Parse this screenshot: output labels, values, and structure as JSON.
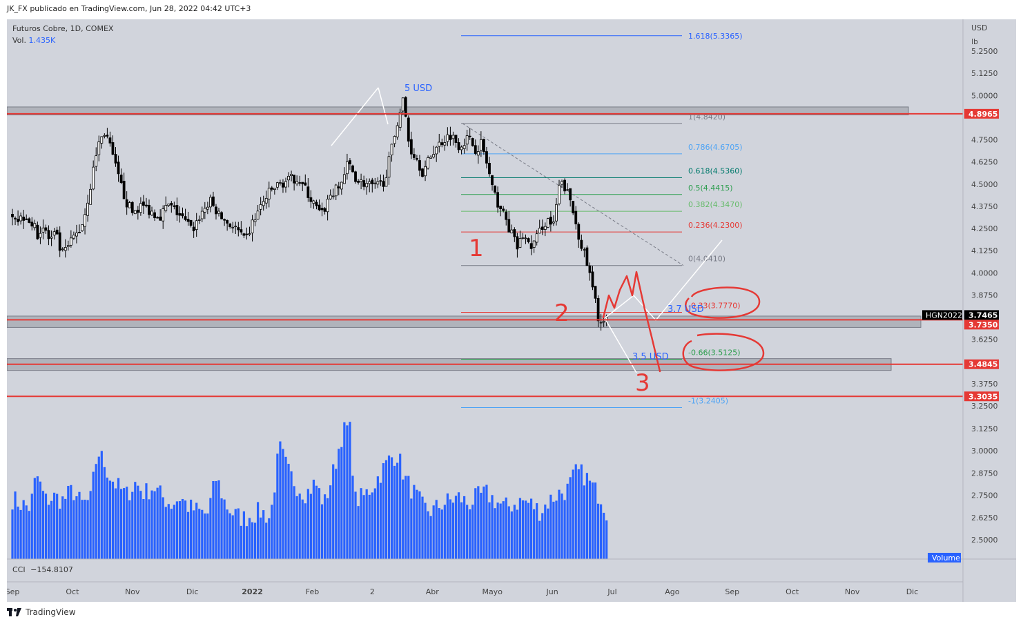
{
  "header": {
    "publisher_line": "JK_FX publicado en TradingView.com, Jun 28, 2022 04:42 UTC+3"
  },
  "legend": {
    "symbol_line": "Futuros Cobre, 1D, COMEX",
    "vol_label": "Vol.",
    "vol_value": "1.435K",
    "cci_label": "CCI",
    "cci_value": "−154.8107"
  },
  "axis": {
    "currency": "USD",
    "unit": "lb",
    "price_ticks": [
      "5.2500",
      "5.1250",
      "5.0000",
      "4.7500",
      "4.6250",
      "4.5000",
      "4.3750",
      "4.2500",
      "4.1250",
      "4.0000",
      "3.8750",
      "3.6250",
      "3.3750",
      "3.2500",
      "3.1250",
      "3.0000",
      "2.8750",
      "2.7500",
      "2.6250",
      "2.5000"
    ],
    "time_ticks": [
      "Sep",
      "Oct",
      "Nov",
      "Dic",
      "2022",
      "Feb",
      "2",
      "Abr",
      "Mayo",
      "Jun",
      "Jul",
      "Ago",
      "Sep",
      "Oct",
      "Nov",
      "Dic"
    ],
    "volume_tag": "Volume"
  },
  "price_tags": [
    {
      "text": "4.8965",
      "price": 4.8965,
      "color": "#e53935"
    },
    {
      "text": "3.7465",
      "price": 3.7465,
      "color": "#000000"
    },
    {
      "text": "3.7350",
      "price": 3.735,
      "color": "#e53935"
    },
    {
      "text": "3.4845",
      "price": 3.4845,
      "color": "#e53935"
    },
    {
      "text": "3.3035",
      "price": 3.3035,
      "color": "#e53935"
    }
  ],
  "symbol_tag": "HGN2022",
  "fib_levels": [
    {
      "label": "1.618(5.3365)",
      "price": 5.3365,
      "color": "#2962ff"
    },
    {
      "label": "1(4.8420)",
      "price": 4.842,
      "color": "#787b86"
    },
    {
      "label": "0.786(4.6705)",
      "price": 4.6705,
      "color": "#4da3f5"
    },
    {
      "label": "0.618(4.5360)",
      "price": 4.536,
      "color": "#00796b"
    },
    {
      "label": "0.5(4.4415)",
      "price": 4.4415,
      "color": "#2e9e4f"
    },
    {
      "label": "0.382(4.3470)",
      "price": 4.347,
      "color": "#66bb6a"
    },
    {
      "label": "0.236(4.2300)",
      "price": 4.23,
      "color": "#e53935"
    },
    {
      "label": "0(4.0410)",
      "price": 4.041,
      "color": "#787b86"
    },
    {
      "label": "-0.33(3.7770)",
      "price": 3.777,
      "color": "#e53935"
    },
    {
      "label": "-0.66(3.5125)",
      "price": 3.5125,
      "color": "#2e9e4f"
    },
    {
      "label": "-1(3.2405)",
      "price": 3.2405,
      "color": "#4da3f5"
    }
  ],
  "annotations": {
    "target_high": "5 USD",
    "target_mid": "3.7 USD",
    "target_low": "3.5 USD",
    "wave_1": "1",
    "wave_2": "2",
    "wave_3": "3"
  },
  "colors": {
    "up_candle": "#ffffff",
    "down_candle": "#000000",
    "volume": "#2962ff",
    "support": "#e53935",
    "drawing": "#ffffff"
  },
  "footer": {
    "brand": "TradingView"
  },
  "chart_data": {
    "type": "candlestick",
    "title": "Futuros Cobre, 1D, COMEX",
    "ylabel": "USD / lb",
    "ylim": [
      3.18,
      5.27
    ],
    "volume_ylim": [
      2.45,
      3.2
    ],
    "x_categories": [
      "Sep",
      "Oct",
      "Nov",
      "Dic",
      "2022",
      "Feb",
      "2",
      "Abr",
      "Mayo",
      "Jun",
      "Jul",
      "Ago",
      "Sep",
      "Oct",
      "Nov",
      "Dic"
    ],
    "x_range": [
      0,
      15.6
    ],
    "close_path": [
      [
        0.0,
        4.34
      ],
      [
        0.1,
        4.3
      ],
      [
        0.22,
        4.33
      ],
      [
        0.32,
        4.28
      ],
      [
        0.42,
        4.22
      ],
      [
        0.52,
        4.26
      ],
      [
        0.62,
        4.18
      ],
      [
        0.72,
        4.22
      ],
      [
        0.82,
        4.1
      ],
      [
        0.92,
        4.14
      ],
      [
        1.02,
        4.2
      ],
      [
        1.12,
        4.24
      ],
      [
        1.2,
        4.32
      ],
      [
        1.32,
        4.52
      ],
      [
        1.42,
        4.72
      ],
      [
        1.55,
        4.8
      ],
      [
        1.65,
        4.68
      ],
      [
        1.78,
        4.52
      ],
      [
        1.9,
        4.4
      ],
      [
        2.0,
        4.34
      ],
      [
        2.15,
        4.38
      ],
      [
        2.3,
        4.35
      ],
      [
        2.45,
        4.32
      ],
      [
        2.6,
        4.38
      ],
      [
        2.75,
        4.34
      ],
      [
        2.9,
        4.28
      ],
      [
        3.0,
        4.24
      ],
      [
        3.15,
        4.34
      ],
      [
        3.3,
        4.4
      ],
      [
        3.45,
        4.32
      ],
      [
        3.6,
        4.28
      ],
      [
        3.75,
        4.24
      ],
      [
        3.88,
        4.17
      ],
      [
        4.0,
        4.28
      ],
      [
        4.15,
        4.38
      ],
      [
        4.3,
        4.46
      ],
      [
        4.45,
        4.5
      ],
      [
        4.6,
        4.52
      ],
      [
        4.75,
        4.54
      ],
      [
        4.9,
        4.46
      ],
      [
        5.0,
        4.4
      ],
      [
        5.15,
        4.32
      ],
      [
        5.3,
        4.44
      ],
      [
        5.45,
        4.48
      ],
      [
        5.6,
        4.62
      ],
      [
        5.75,
        4.52
      ],
      [
        5.9,
        4.5
      ],
      [
        6.05,
        4.48
      ],
      [
        6.2,
        4.52
      ],
      [
        6.3,
        4.66
      ],
      [
        6.42,
        4.86
      ],
      [
        6.52,
        4.98
      ],
      [
        6.62,
        4.7
      ],
      [
        6.72,
        4.66
      ],
      [
        6.85,
        4.56
      ],
      [
        7.0,
        4.68
      ],
      [
        7.15,
        4.74
      ],
      [
        7.3,
        4.78
      ],
      [
        7.45,
        4.72
      ],
      [
        7.6,
        4.76
      ],
      [
        7.72,
        4.7
      ],
      [
        7.82,
        4.73
      ],
      [
        7.92,
        4.6
      ],
      [
        8.02,
        4.44
      ],
      [
        8.12,
        4.38
      ],
      [
        8.22,
        4.3
      ],
      [
        8.32,
        4.22
      ],
      [
        8.42,
        4.14
      ],
      [
        8.52,
        4.22
      ],
      [
        8.62,
        4.14
      ],
      [
        8.72,
        4.18
      ],
      [
        8.82,
        4.26
      ],
      [
        8.92,
        4.3
      ],
      [
        9.02,
        4.26
      ],
      [
        9.12,
        4.5
      ],
      [
        9.22,
        4.48
      ],
      [
        9.32,
        4.38
      ],
      [
        9.42,
        4.24
      ],
      [
        9.52,
        4.12
      ],
      [
        9.6,
        4.02
      ],
      [
        9.68,
        3.9
      ],
      [
        9.76,
        3.76
      ],
      [
        9.84,
        3.7
      ],
      [
        9.92,
        3.7465
      ]
    ],
    "volume_path": [
      [
        0.0,
        2.73
      ],
      [
        0.15,
        2.7
      ],
      [
        0.3,
        2.68
      ],
      [
        0.4,
        2.87
      ],
      [
        0.55,
        2.72
      ],
      [
        0.7,
        2.74
      ],
      [
        0.85,
        2.72
      ],
      [
        1.0,
        2.78
      ],
      [
        1.15,
        2.7
      ],
      [
        1.3,
        2.72
      ],
      [
        1.42,
        3.0
      ],
      [
        1.52,
        2.94
      ],
      [
        1.62,
        2.86
      ],
      [
        1.75,
        2.8
      ],
      [
        1.9,
        2.75
      ],
      [
        2.05,
        2.82
      ],
      [
        2.2,
        2.76
      ],
      [
        2.35,
        2.8
      ],
      [
        2.5,
        2.74
      ],
      [
        2.65,
        2.7
      ],
      [
        2.8,
        2.74
      ],
      [
        2.95,
        2.68
      ],
      [
        3.1,
        2.66
      ],
      [
        3.25,
        2.64
      ],
      [
        3.4,
        2.85
      ],
      [
        3.55,
        2.7
      ],
      [
        3.7,
        2.64
      ],
      [
        3.85,
        2.62
      ],
      [
        4.0,
        2.64
      ],
      [
        4.15,
        2.66
      ],
      [
        4.3,
        2.62
      ],
      [
        4.45,
        3.02
      ],
      [
        4.6,
        2.88
      ],
      [
        4.75,
        2.8
      ],
      [
        4.9,
        2.76
      ],
      [
        5.05,
        2.82
      ],
      [
        5.2,
        2.7
      ],
      [
        5.35,
        2.88
      ],
      [
        5.5,
        3.1
      ],
      [
        5.62,
        3.14
      ],
      [
        5.72,
        2.72
      ],
      [
        5.85,
        2.74
      ],
      [
        6.0,
        2.8
      ],
      [
        6.15,
        2.88
      ],
      [
        6.3,
        2.96
      ],
      [
        6.42,
        2.98
      ],
      [
        6.55,
        2.84
      ],
      [
        6.7,
        2.76
      ],
      [
        6.85,
        2.68
      ],
      [
        7.0,
        2.66
      ],
      [
        7.15,
        2.7
      ],
      [
        7.3,
        2.72
      ],
      [
        7.45,
        2.74
      ],
      [
        7.6,
        2.7
      ],
      [
        7.75,
        2.74
      ],
      [
        7.9,
        2.76
      ],
      [
        8.05,
        2.72
      ],
      [
        8.2,
        2.68
      ],
      [
        8.35,
        2.7
      ],
      [
        8.5,
        2.72
      ],
      [
        8.65,
        2.7
      ],
      [
        8.8,
        2.66
      ],
      [
        8.95,
        2.72
      ],
      [
        9.1,
        2.76
      ],
      [
        9.25,
        2.78
      ],
      [
        9.4,
        2.88
      ],
      [
        9.55,
        2.86
      ],
      [
        9.7,
        2.78
      ],
      [
        9.82,
        2.74
      ],
      [
        9.92,
        2.64
      ]
    ]
  }
}
